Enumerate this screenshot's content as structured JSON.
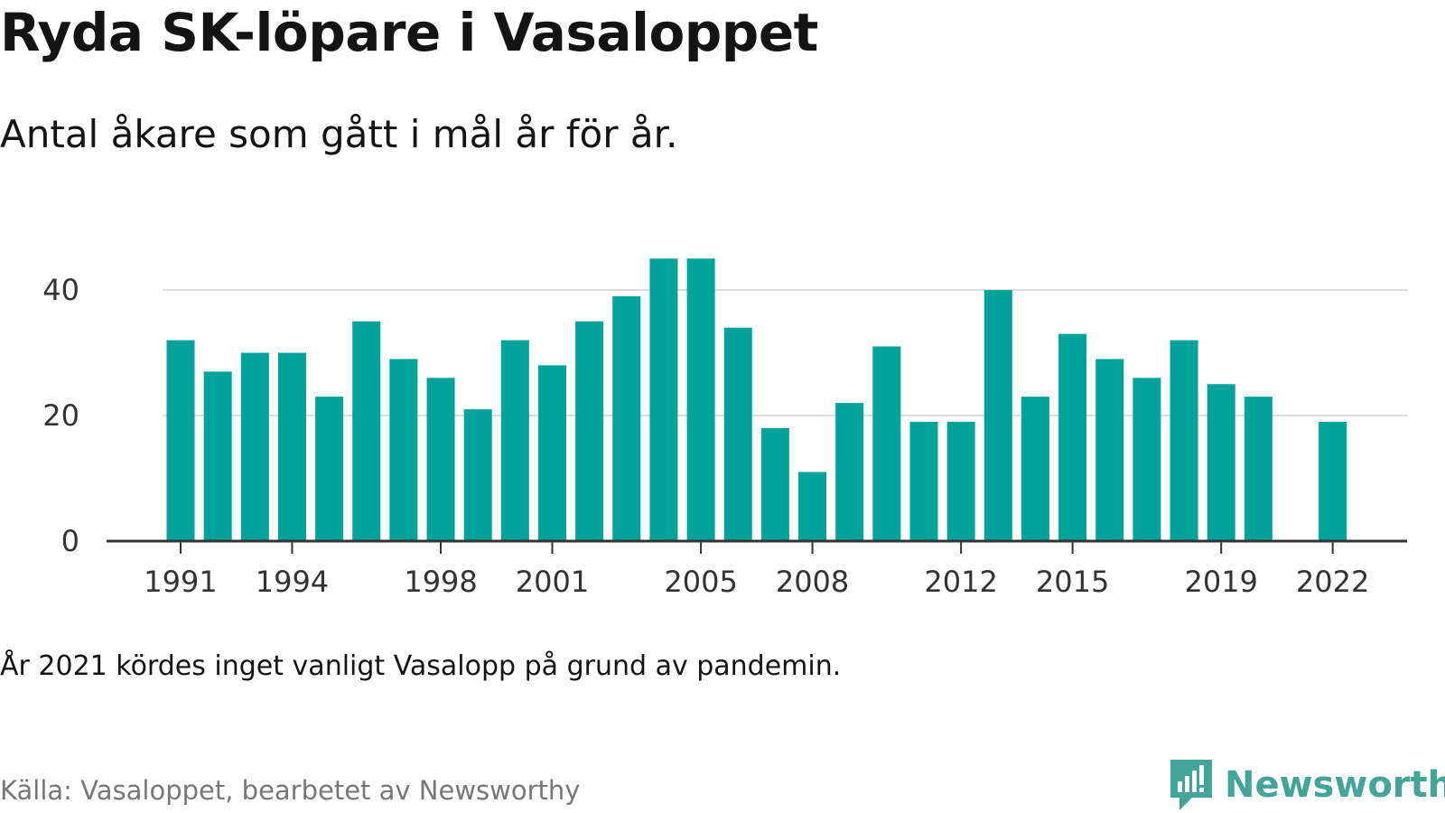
{
  "header": {
    "title": "Ryda SK-löpare i Vasaloppet",
    "subtitle": "Antal åkare som gått i mål år för år."
  },
  "footer": {
    "note": "År 2021 kördes inget vanligt Vasalopp på grund av pandemin.",
    "source": "Källa: Vasaloppet, bearbetet av Newsworthy",
    "brand": "Newsworthy"
  },
  "colors": {
    "bar": "#00a29a",
    "grid": "#dddddd",
    "axis": "#333333",
    "brand": "#43a49a"
  },
  "icons": {
    "brand_logo": "newsworthy-logo-icon"
  },
  "chart_data": {
    "type": "bar",
    "title": "Ryda SK-löpare i Vasaloppet",
    "subtitle": "Antal åkare som gått i mål år för år.",
    "xlabel": "",
    "ylabel": "",
    "ylim": [
      0,
      45
    ],
    "grid": true,
    "yticks": [
      0,
      20,
      40
    ],
    "xticks": [
      1991,
      1994,
      1998,
      2001,
      2005,
      2008,
      2012,
      2015,
      2019,
      2022
    ],
    "categories": [
      1991,
      1992,
      1993,
      1994,
      1995,
      1996,
      1997,
      1998,
      1999,
      2000,
      2001,
      2002,
      2003,
      2004,
      2005,
      2006,
      2007,
      2008,
      2009,
      2010,
      2011,
      2012,
      2013,
      2014,
      2015,
      2016,
      2017,
      2018,
      2019,
      2020,
      2021,
      2022
    ],
    "values": [
      32,
      27,
      30,
      30,
      23,
      35,
      29,
      26,
      21,
      32,
      28,
      35,
      39,
      45,
      45,
      34,
      18,
      11,
      22,
      31,
      19,
      19,
      40,
      23,
      33,
      29,
      26,
      32,
      25,
      23,
      null,
      19
    ]
  }
}
